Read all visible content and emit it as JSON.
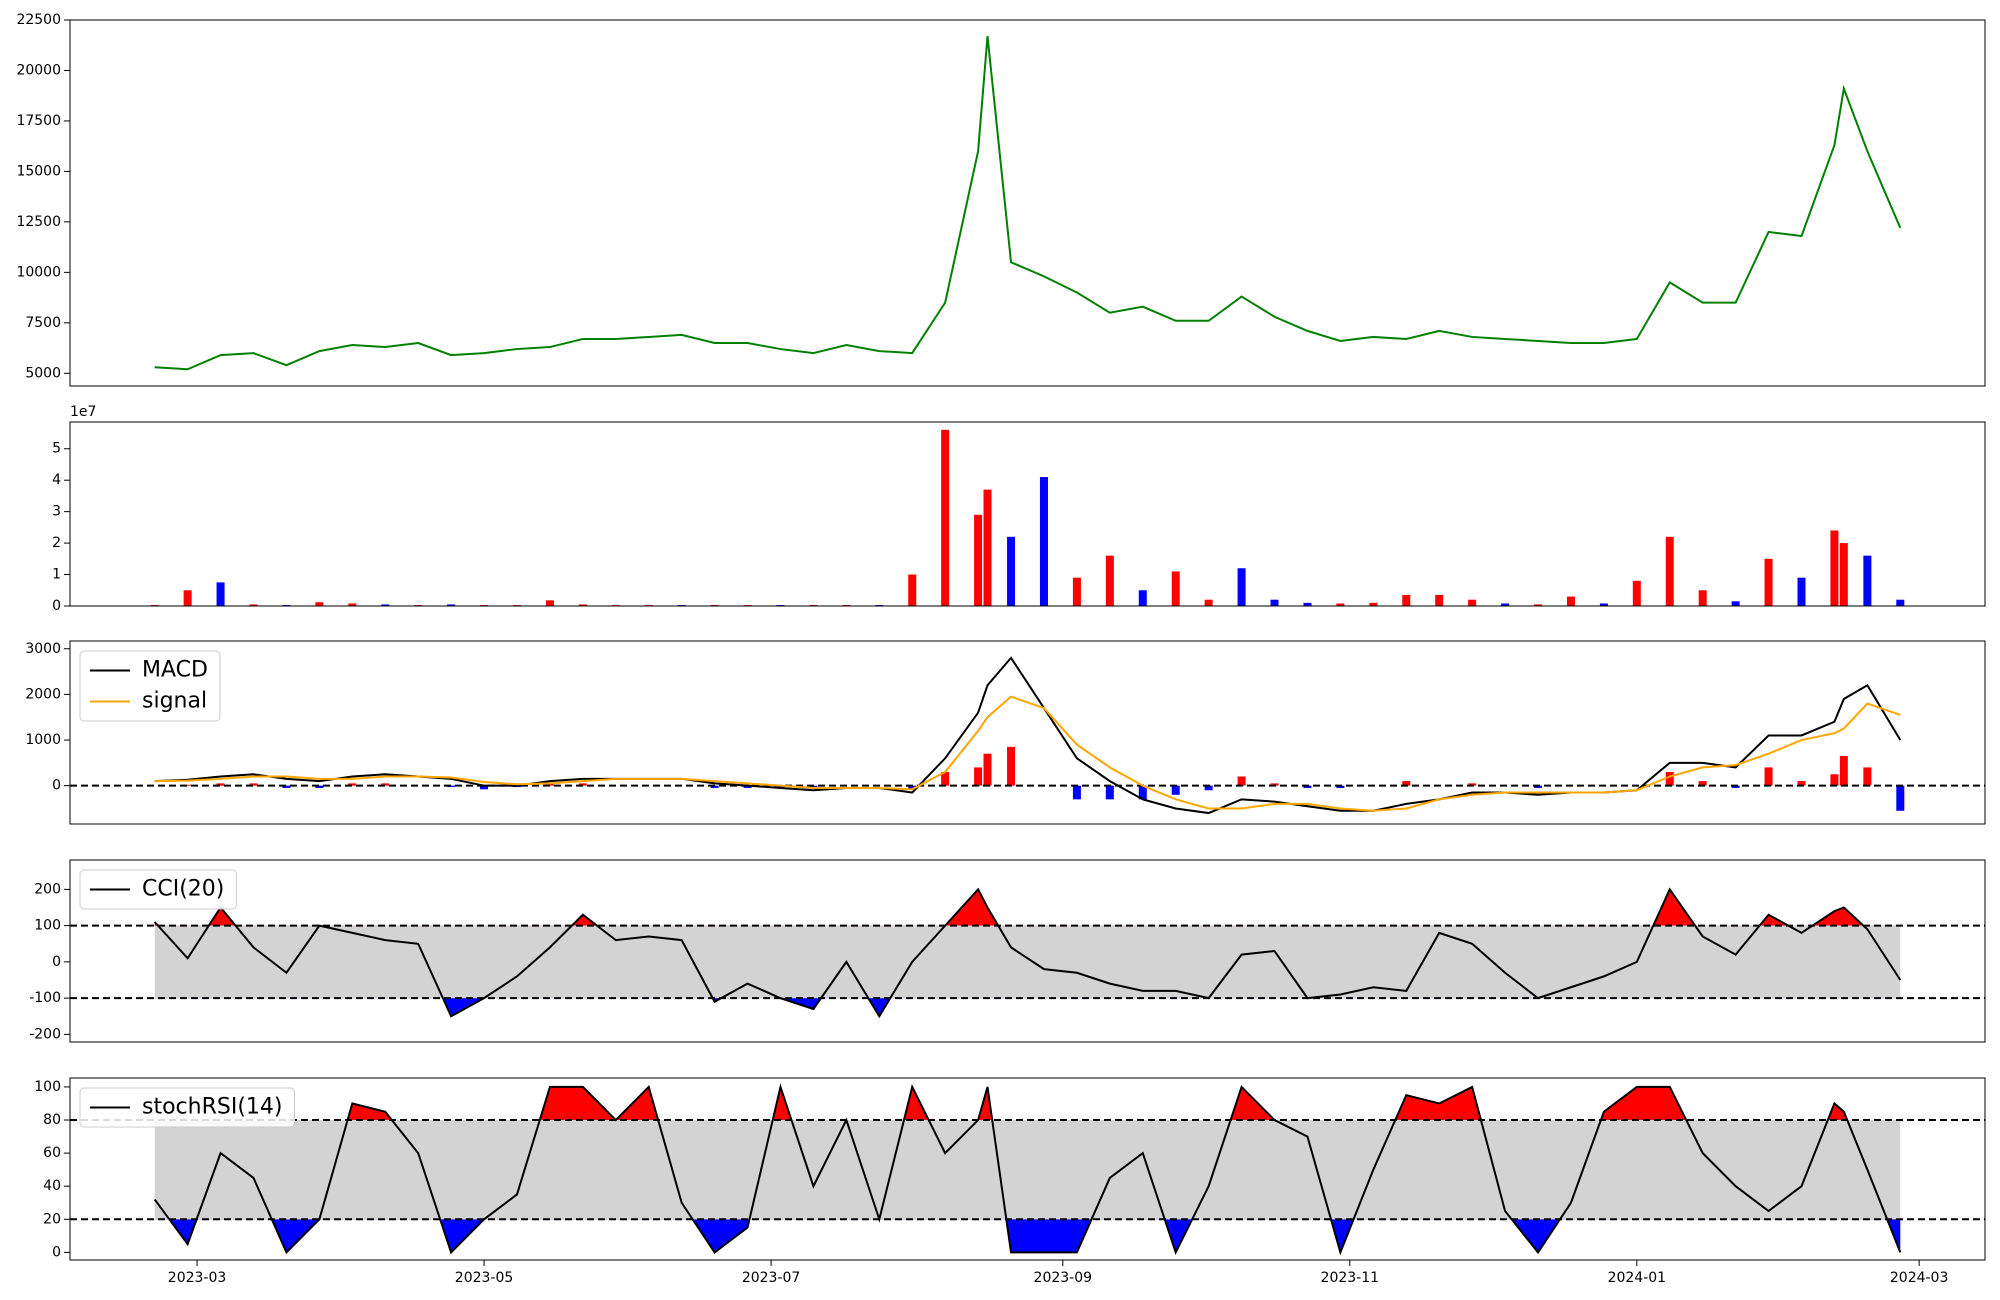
{
  "chart_data": [
    {
      "type": "line",
      "x": [
        "2023-02-20",
        "2023-02-27",
        "2023-03-06",
        "2023-03-13",
        "2023-03-20",
        "2023-03-27",
        "2023-04-03",
        "2023-04-10",
        "2023-04-17",
        "2023-04-24",
        "2023-05-01",
        "2023-05-08",
        "2023-05-15",
        "2023-05-22",
        "2023-05-29",
        "2023-06-05",
        "2023-06-12",
        "2023-06-19",
        "2023-06-26",
        "2023-07-03",
        "2023-07-10",
        "2023-07-17",
        "2023-07-24",
        "2023-07-31",
        "2023-08-07",
        "2023-08-14",
        "2023-08-16",
        "2023-08-21",
        "2023-08-28",
        "2023-09-04",
        "2023-09-11",
        "2023-09-18",
        "2023-09-25",
        "2023-10-02",
        "2023-10-09",
        "2023-10-16",
        "2023-10-23",
        "2023-10-30",
        "2023-11-06",
        "2023-11-13",
        "2023-11-20",
        "2023-11-27",
        "2023-12-04",
        "2023-12-11",
        "2023-12-18",
        "2023-12-25",
        "2024-01-01",
        "2024-01-08",
        "2024-01-15",
        "2024-01-22",
        "2024-01-29",
        "2024-02-05",
        "2024-02-12",
        "2024-02-14",
        "2024-02-19",
        "2024-02-26"
      ],
      "series": [
        {
          "color": "#008000",
          "values": [
            5300,
            5200,
            5900,
            6000,
            5400,
            6100,
            6400,
            6300,
            6500,
            5900,
            6000,
            6200,
            6300,
            6700,
            6700,
            6800,
            6900,
            6500,
            6500,
            6200,
            6000,
            6400,
            6100,
            6000,
            8500,
            16000,
            21700,
            10500,
            9800,
            9000,
            8000,
            8300,
            7600,
            7600,
            8800,
            7800,
            7100,
            6600,
            6800,
            6700,
            7100,
            6800,
            6700,
            6600,
            6500,
            6500,
            6700,
            9500,
            8500,
            8500,
            12000,
            11800,
            16300,
            19100,
            16000,
            12200
          ]
        }
      ],
      "xlim": [
        "2023-02-02",
        "2024-03-15"
      ],
      "ylim": [
        4370,
        22500
      ],
      "yticks": [
        5000,
        7500,
        10000,
        12500,
        15000,
        17500,
        20000,
        22500
      ]
    },
    {
      "type": "bar",
      "x": [
        "2023-02-20",
        "2023-02-27",
        "2023-03-06",
        "2023-03-13",
        "2023-03-20",
        "2023-03-27",
        "2023-04-03",
        "2023-04-10",
        "2023-04-17",
        "2023-04-24",
        "2023-05-01",
        "2023-05-08",
        "2023-05-15",
        "2023-05-22",
        "2023-05-29",
        "2023-06-05",
        "2023-06-12",
        "2023-06-19",
        "2023-06-26",
        "2023-07-03",
        "2023-07-10",
        "2023-07-17",
        "2023-07-24",
        "2023-07-31",
        "2023-08-07",
        "2023-08-14",
        "2023-08-16",
        "2023-08-21",
        "2023-08-28",
        "2023-09-04",
        "2023-09-11",
        "2023-09-18",
        "2023-09-25",
        "2023-10-02",
        "2023-10-09",
        "2023-10-16",
        "2023-10-23",
        "2023-10-30",
        "2023-11-06",
        "2023-11-13",
        "2023-11-20",
        "2023-11-27",
        "2023-12-04",
        "2023-12-11",
        "2023-12-18",
        "2023-12-25",
        "2024-01-01",
        "2024-01-08",
        "2024-01-15",
        "2024-01-22",
        "2024-01-29",
        "2024-02-05",
        "2024-02-12",
        "2024-02-14",
        "2024-02-19",
        "2024-02-26"
      ],
      "values": [
        300000,
        5000000,
        7500000,
        500000,
        300000,
        1200000,
        800000,
        500000,
        300000,
        500000,
        300000,
        300000,
        1800000,
        500000,
        300000,
        300000,
        300000,
        300000,
        300000,
        300000,
        300000,
        300000,
        300000,
        10000000,
        56000000,
        29000000,
        37000000,
        22000000,
        41000000,
        9000000,
        16000000,
        5000000,
        11000000,
        2000000,
        12000000,
        2000000,
        1000000,
        800000,
        1000000,
        3500000,
        3500000,
        2000000,
        800000,
        500000,
        3000000,
        800000,
        8000000,
        22000000,
        5000000,
        1500000,
        15000000,
        9000000,
        24000000,
        20000000,
        16000000,
        2000000
      ],
      "colors": [
        "#ff0000",
        "#ff0000",
        "#0000ff",
        "#ff0000",
        "#0000ff",
        "#ff0000",
        "#ff0000",
        "#0000ff",
        "#ff0000",
        "#0000ff",
        "#ff0000",
        "#ff0000",
        "#ff0000",
        "#ff0000",
        "#ff0000",
        "#ff0000",
        "#0000ff",
        "#ff0000",
        "#ff0000",
        "#0000ff",
        "#ff0000",
        "#ff0000",
        "#0000ff",
        "#ff0000",
        "#ff0000",
        "#ff0000",
        "#ff0000",
        "#0000ff",
        "#0000ff",
        "#ff0000",
        "#ff0000",
        "#0000ff",
        "#ff0000",
        "#ff0000",
        "#0000ff",
        "#0000ff",
        "#0000ff",
        "#ff0000",
        "#ff0000",
        "#ff0000",
        "#ff0000",
        "#ff0000",
        "#0000ff",
        "#ff0000",
        "#ff0000",
        "#0000ff",
        "#ff0000",
        "#ff0000",
        "#ff0000",
        "#0000ff",
        "#ff0000",
        "#0000ff",
        "#ff0000",
        "#ff0000",
        "#0000ff",
        "#0000ff"
      ],
      "offset_label": "1e7",
      "xlim": [
        "2023-02-02",
        "2024-03-15"
      ],
      "ylim": [
        0,
        58500000
      ],
      "yticks": [
        0,
        {
          "value": 10000000,
          "label": "1"
        },
        {
          "value": 20000000,
          "label": "2"
        },
        {
          "value": 30000000,
          "label": "3"
        },
        {
          "value": 40000000,
          "label": "4"
        },
        {
          "value": 50000000,
          "label": "5"
        }
      ]
    },
    {
      "type": "macd",
      "x": [
        "2023-02-20",
        "2023-02-27",
        "2023-03-06",
        "2023-03-13",
        "2023-03-20",
        "2023-03-27",
        "2023-04-03",
        "2023-04-10",
        "2023-04-17",
        "2023-04-24",
        "2023-05-01",
        "2023-05-08",
        "2023-05-15",
        "2023-05-22",
        "2023-05-29",
        "2023-06-05",
        "2023-06-12",
        "2023-06-19",
        "2023-06-26",
        "2023-07-03",
        "2023-07-10",
        "2023-07-17",
        "2023-07-24",
        "2023-07-31",
        "2023-08-07",
        "2023-08-14",
        "2023-08-16",
        "2023-08-21",
        "2023-08-28",
        "2023-09-04",
        "2023-09-11",
        "2023-09-18",
        "2023-09-25",
        "2023-10-02",
        "2023-10-09",
        "2023-10-16",
        "2023-10-23",
        "2023-10-30",
        "2023-11-06",
        "2023-11-13",
        "2023-11-20",
        "2023-11-27",
        "2023-12-04",
        "2023-12-11",
        "2023-12-18",
        "2023-12-25",
        "2024-01-01",
        "2024-01-08",
        "2024-01-15",
        "2024-01-22",
        "2024-01-29",
        "2024-02-05",
        "2024-02-12",
        "2024-02-14",
        "2024-02-19",
        "2024-02-26"
      ],
      "series": [
        {
          "name": "MACD",
          "color": "#000000",
          "values": [
            100,
            130,
            200,
            250,
            150,
            100,
            200,
            250,
            200,
            150,
            0,
            0,
            100,
            150,
            150,
            150,
            150,
            50,
            0,
            -50,
            -100,
            -50,
            -50,
            -150,
            600,
            1600,
            2200,
            2800,
            1700,
            600,
            100,
            -300,
            -500,
            -600,
            -300,
            -350,
            -450,
            -550,
            -550,
            -400,
            -300,
            -150,
            -150,
            -200,
            -150,
            -150,
            -100,
            500,
            500,
            400,
            1100,
            1100,
            1400,
            1900,
            2200,
            1000
          ]
        },
        {
          "name": "signal",
          "color": "#ffa500",
          "values": [
            100,
            110,
            150,
            200,
            200,
            150,
            150,
            200,
            200,
            180,
            80,
            30,
            50,
            100,
            150,
            150,
            150,
            100,
            50,
            0,
            -50,
            -50,
            -50,
            -80,
            300,
            1200,
            1500,
            1950,
            1700,
            900,
            400,
            0,
            -300,
            -500,
            -500,
            -400,
            -400,
            -500,
            -550,
            -500,
            -300,
            -200,
            -150,
            -150,
            -150,
            -150,
            -100,
            200,
            400,
            450,
            700,
            1000,
            1150,
            1250,
            1800,
            1550
          ]
        }
      ],
      "histogram": {
        "up_color": "#ff0000",
        "down_color": "#0000ff",
        "values": [
          0,
          20,
          50,
          50,
          -50,
          -50,
          50,
          50,
          0,
          -30,
          -80,
          -30,
          50,
          50,
          0,
          0,
          0,
          -50,
          -50,
          -50,
          -50,
          0,
          0,
          -70,
          300,
          400,
          700,
          850,
          0,
          -300,
          -300,
          -300,
          -200,
          -100,
          200,
          50,
          -50,
          -50,
          0,
          100,
          0,
          50,
          0,
          -50,
          0,
          0,
          0,
          300,
          100,
          -50,
          400,
          100,
          250,
          650,
          400,
          -550
        ]
      },
      "hlines": [
        0
      ],
      "legend": "upper left",
      "xlim": [
        "2023-02-02",
        "2024-03-15"
      ],
      "ylim": [
        -840,
        3170
      ],
      "yticks": [
        0,
        1000,
        2000,
        3000
      ]
    },
    {
      "type": "band",
      "x": [
        "2023-02-20",
        "2023-02-27",
        "2023-03-06",
        "2023-03-13",
        "2023-03-20",
        "2023-03-27",
        "2023-04-03",
        "2023-04-10",
        "2023-04-17",
        "2023-04-24",
        "2023-05-01",
        "2023-05-08",
        "2023-05-15",
        "2023-05-22",
        "2023-05-29",
        "2023-06-05",
        "2023-06-12",
        "2023-06-19",
        "2023-06-26",
        "2023-07-03",
        "2023-07-10",
        "2023-07-17",
        "2023-07-24",
        "2023-07-31",
        "2023-08-07",
        "2023-08-14",
        "2023-08-16",
        "2023-08-21",
        "2023-08-28",
        "2023-09-04",
        "2023-09-11",
        "2023-09-18",
        "2023-09-25",
        "2023-10-02",
        "2023-10-09",
        "2023-10-16",
        "2023-10-23",
        "2023-10-30",
        "2023-11-06",
        "2023-11-13",
        "2023-11-20",
        "2023-11-27",
        "2023-12-04",
        "2023-12-11",
        "2023-12-18",
        "2023-12-25",
        "2024-01-01",
        "2024-01-08",
        "2024-01-15",
        "2024-01-22",
        "2024-01-29",
        "2024-02-05",
        "2024-02-12",
        "2024-02-14",
        "2024-02-19",
        "2024-02-26"
      ],
      "series": [
        {
          "name": "CCI(20)",
          "color": "#000000",
          "values": [
            110,
            10,
            150,
            40,
            -30,
            100,
            80,
            60,
            50,
            -150,
            -100,
            -40,
            40,
            130,
            60,
            70,
            60,
            -110,
            -60,
            -100,
            -130,
            0,
            -150,
            0,
            100,
            200,
            150,
            40,
            -20,
            -30,
            -60,
            -80,
            -80,
            -100,
            20,
            30,
            -100,
            -90,
            -70,
            -80,
            80,
            50,
            -30,
            -100,
            -70,
            -40,
            0,
            200,
            70,
            20,
            130,
            80,
            140,
            150,
            90,
            -50
          ]
        }
      ],
      "upper": 100,
      "lower": -100,
      "band_color": "#d3d3d3",
      "upper_color": "#ff0000",
      "lower_color": "#0000ff",
      "legend": "upper left",
      "xlim": [
        "2023-02-02",
        "2024-03-15"
      ],
      "ylim": [
        -221,
        281
      ],
      "yticks": [
        -200,
        -100,
        0,
        100,
        200
      ]
    },
    {
      "type": "band",
      "x": [
        "2023-02-20",
        "2023-02-27",
        "2023-03-06",
        "2023-03-13",
        "2023-03-20",
        "2023-03-27",
        "2023-04-03",
        "2023-04-10",
        "2023-04-17",
        "2023-04-24",
        "2023-05-01",
        "2023-05-08",
        "2023-05-15",
        "2023-05-22",
        "2023-05-29",
        "2023-06-05",
        "2023-06-12",
        "2023-06-19",
        "2023-06-26",
        "2023-07-03",
        "2023-07-10",
        "2023-07-17",
        "2023-07-24",
        "2023-07-31",
        "2023-08-07",
        "2023-08-14",
        "2023-08-16",
        "2023-08-21",
        "2023-08-28",
        "2023-09-04",
        "2023-09-11",
        "2023-09-18",
        "2023-09-25",
        "2023-10-02",
        "2023-10-09",
        "2023-10-16",
        "2023-10-23",
        "2023-10-30",
        "2023-11-06",
        "2023-11-13",
        "2023-11-20",
        "2023-11-27",
        "2023-12-04",
        "2023-12-11",
        "2023-12-18",
        "2023-12-25",
        "2024-01-01",
        "2024-01-08",
        "2024-01-15",
        "2024-01-22",
        "2024-01-29",
        "2024-02-05",
        "2024-02-12",
        "2024-02-14",
        "2024-02-19",
        "2024-02-26"
      ],
      "series": [
        {
          "name": "stochRSI(14)",
          "color": "#000000",
          "values": [
            32,
            5,
            60,
            45,
            0,
            20,
            90,
            85,
            60,
            0,
            20,
            35,
            100,
            100,
            80,
            100,
            30,
            0,
            15,
            100,
            40,
            80,
            20,
            100,
            60,
            80,
            100,
            0,
            0,
            0,
            45,
            60,
            0,
            40,
            100,
            80,
            70,
            0,
            50,
            95,
            90,
            100,
            25,
            0,
            30,
            85,
            100,
            100,
            60,
            40,
            25,
            40,
            90,
            85,
            50,
            0
          ]
        }
      ],
      "upper": 80,
      "lower": 20,
      "band_color": "#d3d3d3",
      "upper_color": "#ff0000",
      "lower_color": "#0000ff",
      "legend": "upper left",
      "xlim": [
        "2023-02-02",
        "2024-03-15"
      ],
      "xticks": [
        {
          "value": "2023-03-01",
          "label": "2023-03"
        },
        {
          "value": "2023-05-01",
          "label": "2023-05"
        },
        {
          "value": "2023-07-01",
          "label": "2023-07"
        },
        {
          "value": "2023-09-01",
          "label": "2023-09"
        },
        {
          "value": "2023-11-01",
          "label": "2023-11"
        },
        {
          "value": "2024-01-01",
          "label": "2024-01"
        },
        {
          "value": "2024-03-01",
          "label": "2024-03"
        }
      ],
      "ylim": [
        -4.6,
        105.4
      ],
      "yticks": [
        0,
        20,
        40,
        60,
        80,
        100
      ]
    }
  ]
}
